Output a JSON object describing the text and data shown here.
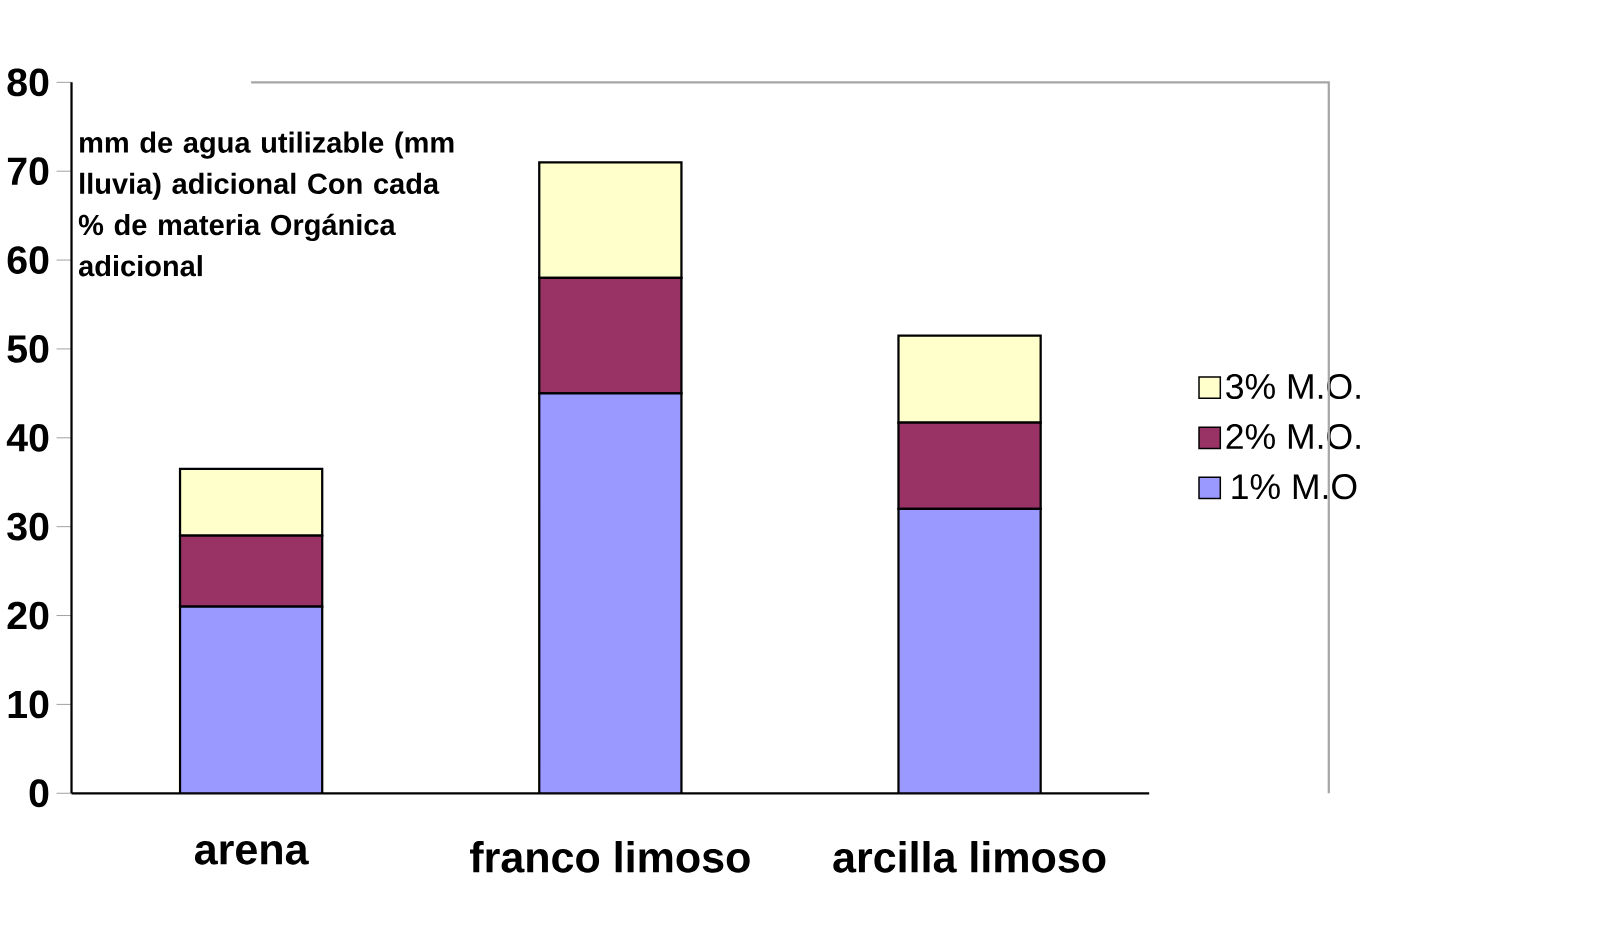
{
  "chart_data": {
    "type": "bar",
    "stacked": true,
    "categories": [
      "arena",
      "franco limoso",
      "arcilla limoso"
    ],
    "series": [
      {
        "name": "1% M.O",
        "color": "#9999ff",
        "values": [
          21,
          45,
          32
        ]
      },
      {
        "name": "2% M.O.",
        "color": "#993366",
        "values": [
          8,
          13,
          9.7
        ]
      },
      {
        "name": "3% M.O.",
        "color": "#ffffcc",
        "values": [
          7.5,
          13,
          9.8
        ]
      }
    ],
    "ylim": [
      0,
      80
    ],
    "yticks": [
      0,
      10,
      20,
      30,
      40,
      50,
      60,
      70,
      80
    ],
    "legend": "right",
    "grid": false,
    "annotations": [
      "mm de agua utilizable (mm lluvia) adicional Con cada % de materia Orgánica adicional"
    ]
  }
}
